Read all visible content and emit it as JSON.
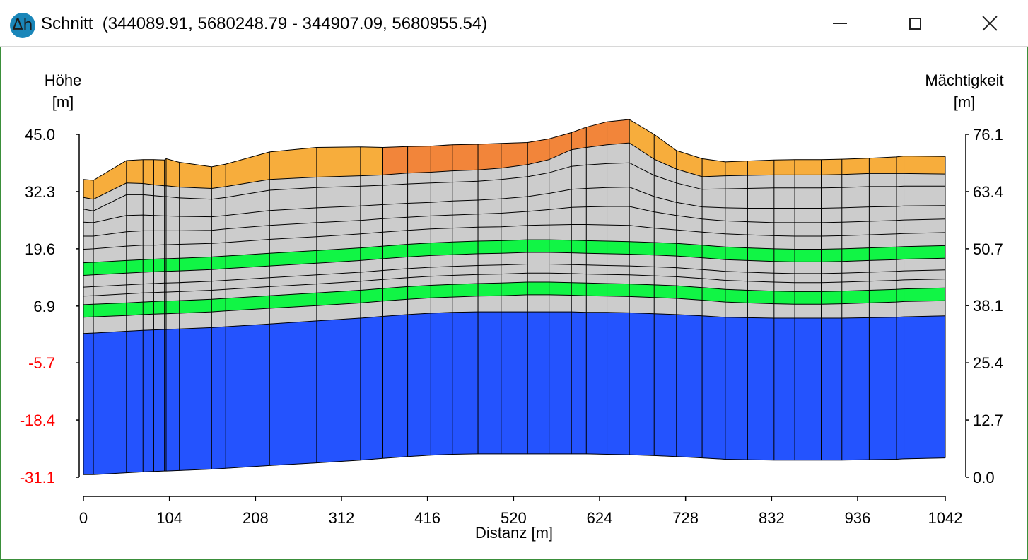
{
  "window": {
    "title": "Schnitt  (344089.91, 5680248.79 - 344907.09, 5680955.54)",
    "icon": "delta-h-icon",
    "controls": [
      "minimize-icon",
      "maximize-icon",
      "close-icon"
    ]
  },
  "chart_data": {
    "type": "area",
    "title": "",
    "xlabel": "Distanz [m]",
    "ylabel_left": [
      "Höhe",
      "[m]"
    ],
    "ylabel_right": [
      "Mächtigkeit",
      "[m]"
    ],
    "xlim": [
      0,
      1042
    ],
    "ylim": [
      -31.1,
      45.0
    ],
    "ylim_right": [
      0.0,
      76.1
    ],
    "x_ticks": [
      "0",
      "104",
      "208",
      "312",
      "416",
      "520",
      "624",
      "728",
      "832",
      "936",
      "1042"
    ],
    "y_ticks_left": [
      "45.0",
      "32.3",
      "19.6",
      "6.9",
      "-5.7",
      "-18.4",
      "-31.1"
    ],
    "y_ticks_right": [
      "76.1",
      "63.4",
      "50.7",
      "38.1",
      "25.4",
      "12.7",
      "0.0"
    ],
    "negative_tick_color": "#ff0000",
    "colors": {
      "top_light": "#f7ad3c",
      "top_dark": "#f2853a",
      "grey": "#cccccc",
      "green": "#11f545",
      "blue": "#2453fe"
    },
    "x": [
      0,
      12,
      52,
      72,
      85,
      98,
      100,
      116,
      155,
      172,
      225,
      282,
      335,
      362,
      392,
      420,
      446,
      477,
      505,
      537,
      563,
      590,
      608,
      633,
      660,
      690,
      717,
      748,
      776,
      803,
      835,
      860,
      892,
      917,
      950,
      983,
      992,
      1042
    ],
    "top_color_by_x": [
      0,
      0,
      0,
      0,
      0,
      0,
      0,
      0,
      0,
      0,
      0,
      0,
      0,
      1,
      1,
      1,
      1,
      1,
      1,
      1,
      1,
      1,
      1,
      1,
      0,
      0,
      0,
      0,
      0,
      0,
      0,
      0,
      0,
      0,
      0,
      0,
      0,
      0
    ],
    "layers": [
      {
        "color": "top",
        "top": [
          35.0,
          34.8,
          39.2,
          39.4,
          39.4,
          39.3,
          39.6,
          38.8,
          37.8,
          38.4,
          41.1,
          42.1,
          42.2,
          42.1,
          42.3,
          42.4,
          42.7,
          42.8,
          43.0,
          43.2,
          44.0,
          45.4,
          46.6,
          47.8,
          48.3,
          45.0,
          41.4,
          39.6,
          38.9,
          39.1,
          39.3,
          39.4,
          39.4,
          39.5,
          39.7,
          40.0,
          40.2,
          40.1
        ],
        "bottom": [
          31.0,
          30.6,
          34.2,
          34.1,
          33.8,
          33.6,
          33.6,
          33.3,
          33.0,
          33.4,
          35.0,
          35.5,
          35.8,
          36.0,
          36.4,
          36.6,
          36.9,
          37.1,
          37.5,
          38.3,
          39.4,
          41.6,
          42.1,
          42.7,
          43.1,
          39.5,
          37.3,
          35.6,
          35.8,
          35.9,
          36.0,
          36.0,
          36.0,
          36.1,
          36.3,
          36.3,
          36.3,
          36.2
        ]
      },
      {
        "color": "grey",
        "top": [
          31.0,
          30.6,
          34.2,
          34.1,
          33.8,
          33.6,
          33.6,
          33.3,
          33.0,
          33.4,
          35.0,
          35.5,
          35.8,
          36.0,
          36.4,
          36.6,
          36.9,
          37.1,
          37.5,
          38.3,
          39.4,
          41.6,
          42.1,
          42.7,
          43.1,
          39.5,
          37.3,
          35.6,
          35.8,
          35.9,
          36.0,
          36.0,
          36.0,
          36.1,
          36.3,
          36.3,
          36.3,
          36.2
        ],
        "bottom": [
          16.5,
          16.6,
          17.0,
          17.2,
          17.3,
          17.4,
          17.4,
          17.5,
          17.8,
          18.0,
          18.6,
          19.2,
          19.8,
          20.2,
          20.6,
          20.9,
          21.1,
          21.3,
          21.4,
          21.6,
          21.6,
          21.5,
          21.4,
          21.3,
          21.2,
          21.0,
          20.8,
          20.4,
          20.0,
          19.8,
          19.6,
          19.5,
          19.5,
          19.6,
          19.8,
          20.0,
          20.1,
          20.3
        ]
      },
      {
        "color": "green",
        "top": [
          16.5,
          16.6,
          17.0,
          17.2,
          17.3,
          17.4,
          17.4,
          17.5,
          17.8,
          18.0,
          18.6,
          19.2,
          19.8,
          20.2,
          20.6,
          20.9,
          21.1,
          21.3,
          21.4,
          21.6,
          21.6,
          21.5,
          21.4,
          21.3,
          21.2,
          21.0,
          20.8,
          20.4,
          20.0,
          19.8,
          19.6,
          19.5,
          19.5,
          19.6,
          19.8,
          20.0,
          20.1,
          20.3
        ],
        "bottom": [
          13.7,
          13.8,
          14.2,
          14.4,
          14.5,
          14.6,
          14.6,
          14.7,
          15.0,
          15.2,
          15.8,
          16.4,
          17.0,
          17.4,
          17.8,
          18.1,
          18.3,
          18.5,
          18.6,
          18.8,
          18.8,
          18.7,
          18.6,
          18.5,
          18.4,
          18.2,
          18.0,
          17.6,
          17.2,
          17.0,
          16.8,
          16.7,
          16.7,
          16.8,
          17.0,
          17.2,
          17.3,
          17.5
        ]
      },
      {
        "color": "grey",
        "top": [
          13.7,
          13.8,
          14.2,
          14.4,
          14.5,
          14.6,
          14.6,
          14.7,
          15.0,
          15.2,
          15.8,
          16.4,
          17.0,
          17.4,
          17.8,
          18.1,
          18.3,
          18.5,
          18.6,
          18.8,
          18.8,
          18.7,
          18.6,
          18.5,
          18.4,
          18.2,
          18.0,
          17.6,
          17.2,
          17.0,
          16.8,
          16.7,
          16.7,
          16.8,
          17.0,
          17.2,
          17.3,
          17.5
        ],
        "bottom": [
          7.2,
          7.3,
          7.6,
          7.8,
          7.9,
          8.0,
          8.0,
          8.1,
          8.4,
          8.6,
          9.2,
          9.8,
          10.4,
          10.8,
          11.2,
          11.5,
          11.7,
          11.9,
          12.0,
          12.2,
          12.2,
          12.1,
          12.0,
          11.9,
          11.8,
          11.6,
          11.4,
          11.0,
          10.6,
          10.4,
          10.2,
          10.1,
          10.1,
          10.2,
          10.4,
          10.6,
          10.7,
          10.9
        ]
      },
      {
        "color": "green",
        "top": [
          7.2,
          7.3,
          7.6,
          7.8,
          7.9,
          8.0,
          8.0,
          8.1,
          8.4,
          8.6,
          9.2,
          9.8,
          10.4,
          10.8,
          11.2,
          11.5,
          11.7,
          11.9,
          12.0,
          12.2,
          12.2,
          12.1,
          12.0,
          11.9,
          11.8,
          11.6,
          11.4,
          11.0,
          10.6,
          10.4,
          10.2,
          10.1,
          10.1,
          10.2,
          10.4,
          10.6,
          10.7,
          10.9
        ],
        "bottom": [
          4.4,
          4.5,
          4.8,
          5.0,
          5.1,
          5.2,
          5.2,
          5.3,
          5.6,
          5.8,
          6.4,
          7.0,
          7.6,
          8.0,
          8.4,
          8.7,
          8.9,
          9.1,
          9.2,
          9.4,
          9.4,
          9.3,
          9.2,
          9.1,
          9.0,
          8.8,
          8.6,
          8.2,
          7.8,
          7.6,
          7.4,
          7.3,
          7.3,
          7.4,
          7.6,
          7.8,
          7.9,
          8.1
        ]
      },
      {
        "color": "grey",
        "top": [
          4.4,
          4.5,
          4.8,
          5.0,
          5.1,
          5.2,
          5.2,
          5.3,
          5.6,
          5.8,
          6.4,
          7.0,
          7.6,
          8.0,
          8.4,
          8.7,
          8.9,
          9.1,
          9.2,
          9.4,
          9.4,
          9.3,
          9.2,
          9.1,
          9.0,
          8.8,
          8.6,
          8.2,
          7.8,
          7.6,
          7.4,
          7.3,
          7.3,
          7.4,
          7.6,
          7.8,
          7.9,
          8.1
        ],
        "bottom": [
          0.8,
          0.9,
          1.3,
          1.5,
          1.6,
          1.7,
          1.7,
          1.8,
          2.1,
          2.3,
          2.9,
          3.6,
          4.2,
          4.6,
          5.0,
          5.3,
          5.5,
          5.6,
          5.6,
          5.6,
          5.6,
          5.6,
          5.5,
          5.5,
          5.4,
          5.2,
          5.0,
          4.7,
          4.4,
          4.3,
          4.2,
          4.2,
          4.2,
          4.2,
          4.3,
          4.4,
          4.5,
          4.7
        ]
      },
      {
        "color": "blue",
        "top": [
          0.8,
          0.9,
          1.3,
          1.5,
          1.6,
          1.7,
          1.7,
          1.8,
          2.1,
          2.3,
          2.9,
          3.6,
          4.2,
          4.6,
          5.0,
          5.3,
          5.5,
          5.6,
          5.6,
          5.6,
          5.6,
          5.6,
          5.5,
          5.5,
          5.4,
          5.2,
          5.0,
          4.7,
          4.4,
          4.3,
          4.2,
          4.2,
          4.2,
          4.2,
          4.3,
          4.4,
          4.5,
          4.7
        ],
        "bottom": [
          -30.5,
          -30.5,
          -30.1,
          -29.9,
          -29.8,
          -29.7,
          -29.7,
          -29.6,
          -29.3,
          -29.1,
          -28.5,
          -27.9,
          -27.3,
          -26.9,
          -26.5,
          -26.2,
          -26.0,
          -25.9,
          -25.9,
          -25.9,
          -25.9,
          -25.9,
          -25.9,
          -26.0,
          -26.1,
          -26.3,
          -26.5,
          -26.8,
          -27.1,
          -27.2,
          -27.3,
          -27.3,
          -27.3,
          -27.3,
          -27.2,
          -27.1,
          -27.0,
          -26.8
        ]
      }
    ],
    "internal_lines": [
      [
        28.4,
        28.0,
        31.6,
        31.6,
        31.4,
        31.2,
        31.2,
        30.9,
        30.6,
        31.0,
        32.6,
        33.2,
        33.5,
        33.7,
        34.0,
        34.2,
        34.4,
        34.6,
        35.0,
        35.6,
        36.5,
        37.9,
        38.2,
        38.5,
        38.7,
        35.9,
        34.2,
        32.8,
        32.9,
        33.0,
        33.1,
        33.1,
        33.1,
        33.2,
        33.4,
        33.4,
        33.5,
        33.5
      ],
      [
        25.5,
        25.4,
        27.0,
        27.1,
        27.0,
        26.9,
        26.9,
        26.8,
        26.7,
        27.0,
        28.1,
        28.7,
        29.1,
        29.4,
        29.7,
        29.9,
        30.2,
        30.4,
        30.7,
        31.2,
        31.9,
        32.8,
        33.0,
        33.2,
        33.3,
        31.2,
        29.9,
        28.9,
        28.7,
        28.6,
        28.6,
        28.6,
        28.6,
        28.7,
        28.9,
        29.0,
        29.1,
        29.2
      ],
      [
        22.4,
        22.4,
        23.4,
        23.6,
        23.6,
        23.6,
        23.6,
        23.6,
        23.7,
        24.0,
        24.8,
        25.4,
        25.9,
        26.3,
        26.6,
        26.9,
        27.1,
        27.3,
        27.5,
        27.9,
        28.3,
        28.8,
        28.9,
        29.0,
        29.0,
        27.8,
        27.0,
        26.2,
        25.8,
        25.6,
        25.4,
        25.4,
        25.4,
        25.5,
        25.7,
        25.9,
        26.0,
        26.2
      ],
      [
        19.5,
        19.6,
        20.2,
        20.4,
        20.4,
        20.5,
        20.5,
        20.6,
        20.8,
        21.0,
        21.7,
        22.3,
        22.9,
        23.3,
        23.7,
        24.0,
        24.2,
        24.4,
        24.5,
        24.8,
        24.9,
        25.0,
        25.0,
        24.9,
        24.8,
        24.2,
        23.8,
        23.3,
        22.9,
        22.7,
        22.5,
        22.4,
        22.4,
        22.5,
        22.7,
        22.9,
        23.0,
        23.2
      ],
      [
        11.1,
        11.2,
        11.6,
        11.8,
        11.9,
        12.0,
        12.0,
        12.1,
        12.4,
        12.6,
        13.2,
        13.8,
        14.4,
        14.8,
        15.2,
        15.5,
        15.7,
        15.9,
        16.0,
        16.2,
        16.2,
        16.1,
        16.0,
        15.9,
        15.8,
        15.6,
        15.4,
        15.0,
        14.6,
        14.4,
        14.2,
        14.1,
        14.1,
        14.2,
        14.4,
        14.6,
        14.7,
        14.9
      ],
      [
        9.1,
        9.2,
        9.6,
        9.8,
        9.9,
        10.0,
        10.0,
        10.1,
        10.4,
        10.6,
        11.2,
        11.8,
        12.4,
        12.8,
        13.2,
        13.5,
        13.7,
        13.9,
        14.0,
        14.2,
        14.2,
        14.1,
        14.0,
        13.9,
        13.8,
        13.6,
        13.4,
        13.0,
        12.6,
        12.4,
        12.2,
        12.1,
        12.1,
        12.2,
        12.4,
        12.6,
        12.7,
        12.9
      ]
    ]
  }
}
